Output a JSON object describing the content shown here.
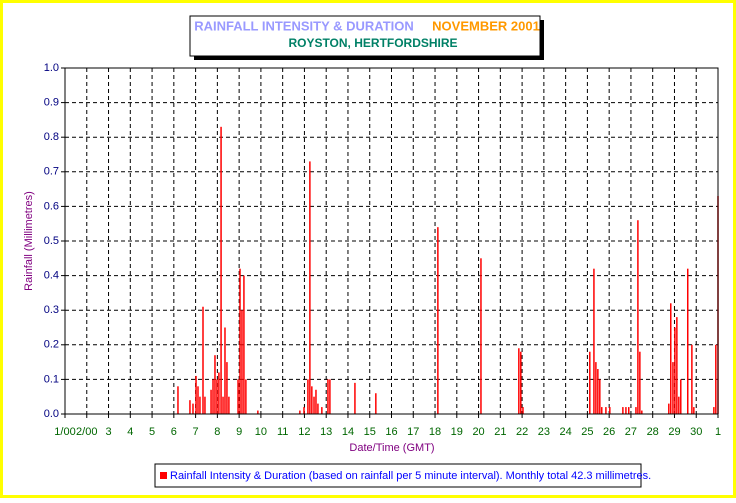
{
  "chart_data": {
    "type": "bar",
    "title": "RAINFALL INTENSITY & DURATION",
    "title_date": "NOVEMBER 2001",
    "subtitle": "ROYSTON, HERTFORDSHIRE",
    "xlabel": "Date/Time (GMT)",
    "ylabel": "Rainfall (Millimetres)",
    "grid": true,
    "xlim": [
      1,
      31
    ],
    "ylim": [
      0,
      1
    ],
    "yticks": [
      {
        "value": 0,
        "label": "0.0"
      },
      0.1,
      0.2,
      0.3,
      0.4,
      0.5,
      0.6,
      0.7,
      0.8,
      0.9,
      {
        "value": 1,
        "label": "1.0"
      }
    ],
    "xticks": [
      {
        "value": 1,
        "label": "1/00"
      },
      {
        "value": 2,
        "label": "2/00"
      },
      3,
      4,
      5,
      6,
      7,
      8,
      9,
      10,
      11,
      12,
      13,
      14,
      15,
      16,
      17,
      18,
      19,
      20,
      21,
      22,
      23,
      24,
      25,
      26,
      27,
      28,
      29,
      30,
      {
        "value": 31,
        "label": "1"
      }
    ],
    "series": [
      {
        "name": "Rainfall Intensity & Duration (based on rainfall per 5 minute interval). Monthly total 42.3 millimetres.",
        "color": "#ff0000",
        "x": [
          6.19,
          6.74,
          6.88,
          7.02,
          7.11,
          7.2,
          7.34,
          7.43,
          7.71,
          7.8,
          7.89,
          7.98,
          8.07,
          8.17,
          8.26,
          8.35,
          8.44,
          8.53,
          8.95,
          9.04,
          9.13,
          9.22,
          9.31,
          9.86,
          11.79,
          11.98,
          12.16,
          12.25,
          12.34,
          12.44,
          12.53,
          12.62,
          12.8,
          13.08,
          13.17,
          14.32,
          15.28,
          18.13,
          20.11,
          21.85,
          21.94,
          22.04,
          25.11,
          25.3,
          25.39,
          25.48,
          25.57,
          25.66,
          25.85,
          26.03,
          26.63,
          26.77,
          26.9,
          27.23,
          27.32,
          27.41,
          27.5,
          28.74,
          28.83,
          28.93,
          29.02,
          29.11,
          29.2,
          29.29,
          29.61,
          29.8,
          29.89,
          30.81,
          30.9,
          31
        ],
        "values": [
          0.08,
          0.04,
          0.03,
          0.11,
          0.08,
          0.05,
          0.31,
          0.05,
          0.07,
          0.1,
          0.17,
          0.1,
          0.12,
          0.83,
          0.05,
          0.25,
          0.15,
          0.05,
          0.1,
          0.42,
          0.3,
          0.4,
          0.1,
          0.01,
          0.01,
          0.02,
          0.1,
          0.73,
          0.08,
          0.05,
          0.07,
          0.03,
          0.02,
          0.1,
          0.1,
          0.09,
          0.06,
          0.54,
          0.45,
          0.19,
          0.18,
          0.02,
          0.18,
          0.42,
          0.15,
          0.13,
          0.1,
          0.02,
          0.02,
          0.02,
          0.02,
          0.02,
          0.02,
          0.02,
          0.56,
          0.18,
          0.01,
          0.03,
          0.32,
          0.15,
          0.25,
          0.28,
          0.05,
          0.1,
          0.42,
          0.2,
          0.02,
          0.02,
          0.2,
          0.63
        ]
      }
    ]
  }
}
